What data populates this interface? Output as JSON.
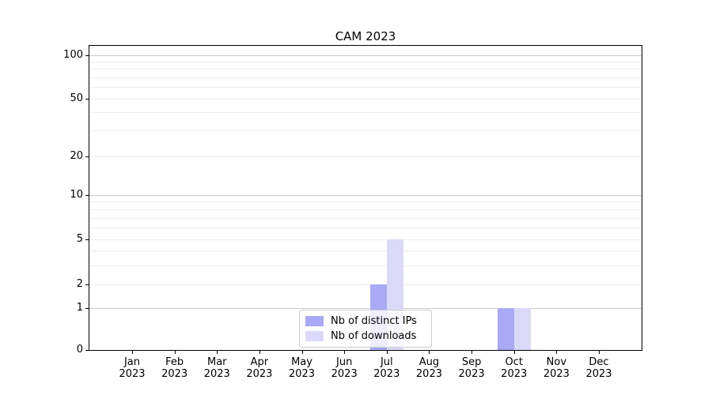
{
  "chart_data": {
    "type": "bar",
    "title": "CAM 2023",
    "x_months": [
      "Jan",
      "Feb",
      "Mar",
      "Apr",
      "May",
      "Jun",
      "Jul",
      "Aug",
      "Sep",
      "Oct",
      "Nov",
      "Dec"
    ],
    "x_year": "2023",
    "yticks": [
      0,
      1,
      2,
      5,
      10,
      20,
      50,
      100
    ],
    "ylim": [
      0,
      115
    ],
    "yscale": "log-like (0,1,2,5,10,20,50,100)",
    "grid": "horizontal major+minor",
    "legend_position": "lower center",
    "series": [
      {
        "name": "Nb of distinct IPs",
        "color": "#a9a9f6",
        "values": [
          0,
          0,
          0,
          0,
          0,
          0,
          2,
          0,
          0,
          1,
          0,
          0
        ]
      },
      {
        "name": "Nb of downloads",
        "color": "#dadaf8",
        "values": [
          0,
          0,
          0,
          0,
          0,
          0,
          5,
          0,
          0,
          1,
          0,
          0
        ]
      }
    ]
  },
  "colors": {
    "axis": "#000000",
    "grid_major": "#c9c9c9",
    "grid_minor": "#ededed",
    "background": "#ffffff"
  }
}
